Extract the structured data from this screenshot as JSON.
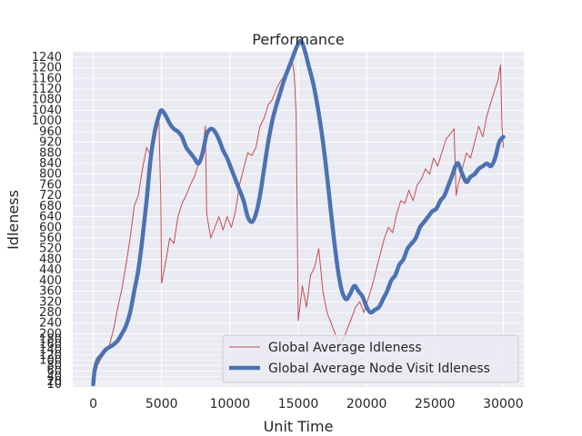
{
  "chart_data": {
    "type": "line",
    "title": "Performance",
    "xlabel": "Unit Time",
    "ylabel": "Idleness",
    "xlim": [
      -1500,
      31500
    ],
    "ylim": [
      0,
      1260
    ],
    "x_ticks": [
      0,
      5000,
      10000,
      15000,
      20000,
      25000,
      30000
    ],
    "x_tick_labels": [
      "0",
      "5000",
      "10000",
      "15000",
      "20000",
      "25000",
      "30000"
    ],
    "y_ticks": [
      10,
      20,
      40,
      60,
      80,
      100,
      120,
      140,
      160,
      180,
      200,
      240,
      280,
      320,
      360,
      400,
      440,
      480,
      520,
      560,
      600,
      640,
      680,
      720,
      760,
      800,
      840,
      880,
      920,
      960,
      1000,
      1040,
      1080,
      1120,
      1160,
      1200,
      1240
    ],
    "grid": true,
    "legend_position": "lower-right",
    "colors": {
      "plot_background": "#eaeaf2",
      "grid": "#ffffff",
      "idleness_line": "#c44e52",
      "visit_idleness_line": "#4c72b0"
    },
    "series": [
      {
        "name": "Global Average Idleness",
        "x": [
          0,
          300,
          600,
          900,
          1200,
          1500,
          1800,
          2100,
          2400,
          2700,
          3000,
          3300,
          3600,
          3900,
          4200,
          4500,
          4800,
          4950,
          5000,
          5300,
          5600,
          5900,
          6200,
          6500,
          6800,
          7100,
          7400,
          7700,
          8000,
          8200,
          8300,
          8600,
          8900,
          9200,
          9500,
          9800,
          10100,
          10400,
          10700,
          11000,
          11300,
          11600,
          11900,
          12200,
          12500,
          12800,
          13100,
          13400,
          13700,
          14000,
          14300,
          14500,
          14700,
          14850,
          15000,
          15300,
          15600,
          15900,
          16200,
          16500,
          16800,
          17100,
          17400,
          17700,
          18000,
          18300,
          18600,
          18900,
          19200,
          19500,
          19800,
          20100,
          20400,
          20700,
          21000,
          21300,
          21600,
          21900,
          22200,
          22500,
          22800,
          23100,
          23400,
          23700,
          24000,
          24300,
          24600,
          24900,
          25200,
          25500,
          25800,
          26100,
          26400,
          26550,
          26700,
          27000,
          27300,
          27600,
          27900,
          28200,
          28500,
          28800,
          29100,
          29400,
          29600,
          29800,
          29900,
          30000
        ],
        "values": [
          10,
          80,
          110,
          130,
          160,
          220,
          300,
          370,
          460,
          560,
          680,
          720,
          820,
          900,
          870,
          960,
          1000,
          700,
          390,
          470,
          560,
          540,
          640,
          690,
          720,
          760,
          790,
          840,
          880,
          980,
          650,
          560,
          600,
          640,
          590,
          640,
          600,
          660,
          760,
          820,
          880,
          870,
          900,
          980,
          1010,
          1060,
          1080,
          1120,
          1150,
          1170,
          1200,
          1240,
          1180,
          1020,
          250,
          380,
          300,
          420,
          450,
          520,
          360,
          280,
          240,
          200,
          160,
          180,
          220,
          260,
          300,
          320,
          280,
          330,
          380,
          440,
          500,
          560,
          600,
          580,
          650,
          700,
          690,
          740,
          700,
          760,
          780,
          820,
          800,
          860,
          830,
          880,
          930,
          950,
          970,
          720,
          760,
          820,
          880,
          860,
          920,
          980,
          940,
          1020,
          1070,
          1120,
          1150,
          1210,
          980,
          900
        ]
      },
      {
        "name": "Global Average Node Visit Idleness",
        "x": [
          0,
          100,
          300,
          600,
          900,
          1200,
          1500,
          1800,
          2100,
          2400,
          2700,
          3000,
          3300,
          3600,
          3900,
          4200,
          4500,
          4800,
          5000,
          5300,
          5600,
          5900,
          6200,
          6500,
          6800,
          7100,
          7400,
          7700,
          8000,
          8300,
          8600,
          8900,
          9200,
          9500,
          9800,
          10100,
          10400,
          10700,
          11000,
          11300,
          11600,
          11900,
          12200,
          12500,
          12800,
          13100,
          13400,
          13700,
          14000,
          14300,
          14600,
          14900,
          15200,
          15500,
          15800,
          16100,
          16400,
          16700,
          17000,
          17300,
          17600,
          17900,
          18200,
          18500,
          18800,
          19100,
          19400,
          19700,
          20000,
          20300,
          20600,
          20900,
          21200,
          21500,
          21800,
          22100,
          22400,
          22700,
          23000,
          23300,
          23600,
          23900,
          24200,
          24500,
          24800,
          25100,
          25400,
          25700,
          26000,
          26300,
          26500,
          26700,
          27000,
          27300,
          27600,
          27900,
          28200,
          28500,
          28800,
          29100,
          29400,
          29700,
          30000
        ],
        "values": [
          10,
          60,
          100,
          120,
          140,
          150,
          160,
          175,
          200,
          230,
          280,
          360,
          440,
          560,
          700,
          860,
          960,
          1020,
          1040,
          1020,
          990,
          970,
          960,
          940,
          900,
          880,
          860,
          840,
          880,
          950,
          970,
          960,
          930,
          890,
          860,
          820,
          780,
          740,
          700,
          640,
          620,
          650,
          720,
          820,
          920,
          1000,
          1060,
          1110,
          1160,
          1200,
          1240,
          1280,
          1300,
          1260,
          1200,
          1140,
          1060,
          960,
          840,
          700,
          560,
          440,
          360,
          330,
          350,
          380,
          360,
          340,
          300,
          280,
          290,
          300,
          330,
          360,
          400,
          420,
          460,
          480,
          520,
          540,
          560,
          600,
          620,
          640,
          660,
          670,
          700,
          720,
          760,
          800,
          830,
          840,
          800,
          770,
          790,
          800,
          820,
          830,
          840,
          830,
          860,
          920,
          940
        ]
      }
    ]
  }
}
